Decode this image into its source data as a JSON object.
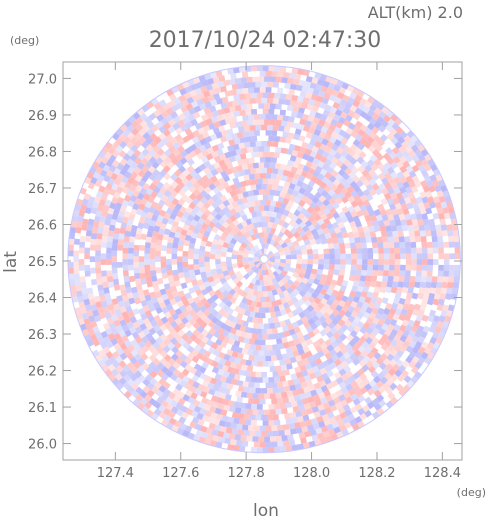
{
  "chart_data": {
    "type": "heatmap",
    "subtitle": "ALT(km)  2.0",
    "title": "2017/10/24 02:47:30",
    "xlabel": "lon",
    "ylabel": "lat",
    "x_unit": "(deg)",
    "y_unit": "(deg)",
    "xlim": [
      127.24,
      128.46
    ],
    "ylim": [
      25.955,
      27.045
    ],
    "xticks": [
      127.4,
      127.6,
      127.8,
      128.0,
      128.2,
      128.4
    ],
    "xtick_labels": [
      "127.4",
      "127.6",
      "127.8",
      "128.0",
      "128.2",
      "128.4"
    ],
    "yticks": [
      26.0,
      26.1,
      26.2,
      26.3,
      26.4,
      26.5,
      26.6,
      26.7,
      26.8,
      26.9,
      27.0
    ],
    "ytick_labels": [
      "26.0",
      "26.1",
      "26.2",
      "26.3",
      "26.4",
      "26.5",
      "26.6",
      "26.7",
      "26.8",
      "26.9",
      "27.0"
    ],
    "center": {
      "lon": 127.855,
      "lat": 26.505
    },
    "range_edge": {
      "lon": 0.6,
      "lat": 0.53
    },
    "grid": false,
    "colors": {
      "positive": "#ff9a9a",
      "negative": "#9f9ff7",
      "frame": "#a0a0a0",
      "text": "#6e6e6e"
    }
  }
}
